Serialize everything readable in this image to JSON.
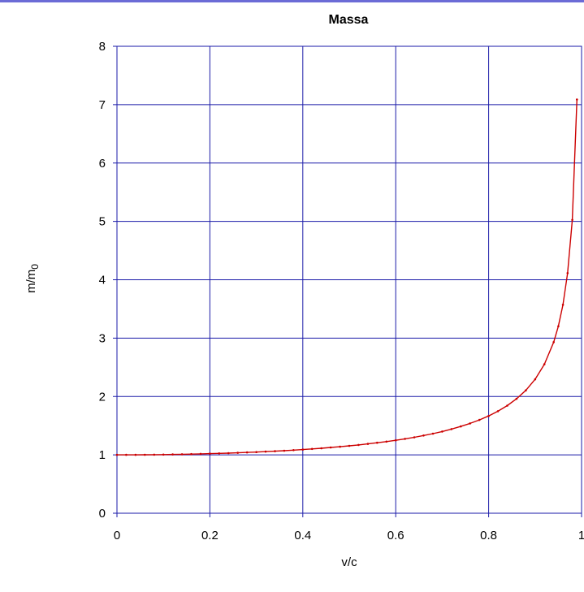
{
  "chart_data": {
    "type": "line",
    "title": "Massa",
    "xlabel": "v/c",
    "ylabel_main": "m/m",
    "ylabel_sub": "0",
    "xlim": [
      0,
      1
    ],
    "ylim": [
      0,
      8
    ],
    "x_ticks": [
      0,
      0.2,
      0.4,
      0.6,
      0.8,
      1
    ],
    "x_tick_labels": [
      "0",
      "0.2",
      "0.4",
      "0.6",
      "0.8",
      "1"
    ],
    "y_ticks": [
      0,
      1,
      2,
      3,
      4,
      5,
      6,
      7,
      8
    ],
    "y_tick_labels": [
      "0",
      "1",
      "2",
      "3",
      "4",
      "5",
      "6",
      "7",
      "8"
    ],
    "grid": true,
    "grid_color": "#1a1aa8",
    "line_color": "#cc0000",
    "x": [
      0,
      0.02,
      0.04,
      0.06,
      0.08,
      0.1,
      0.12,
      0.14,
      0.16,
      0.18,
      0.2,
      0.22,
      0.24,
      0.26,
      0.28,
      0.3,
      0.32,
      0.34,
      0.36,
      0.38,
      0.4,
      0.42,
      0.44,
      0.46,
      0.48,
      0.5,
      0.52,
      0.54,
      0.56,
      0.58,
      0.6,
      0.62,
      0.64,
      0.66,
      0.68,
      0.7,
      0.72,
      0.74,
      0.76,
      0.78,
      0.8,
      0.82,
      0.84,
      0.86,
      0.88,
      0.9,
      0.92,
      0.94,
      0.95,
      0.96,
      0.97,
      0.98,
      0.99
    ],
    "y": [
      1,
      1.0002,
      1.0008,
      1.0018,
      1.0032,
      1.005,
      1.0073,
      1.0099,
      1.013,
      1.0165,
      1.0206,
      1.0251,
      1.0301,
      1.0356,
      1.0417,
      1.0483,
      1.0555,
      1.0633,
      1.0718,
      1.0811,
      1.0911,
      1.1019,
      1.1136,
      1.1264,
      1.1401,
      1.1547,
      1.1707,
      1.1882,
      1.207,
      1.2272,
      1.25,
      1.2745,
      1.3014,
      1.3309,
      1.3635,
      1.4003,
      1.4409,
      1.4868,
      1.5386,
      1.598,
      1.6667,
      1.7471,
      1.843,
      1.9597,
      2.1053,
      2.2942,
      2.5516,
      2.931,
      3.2026,
      3.5714,
      4.1134,
      5.0252,
      7.0888
    ]
  }
}
